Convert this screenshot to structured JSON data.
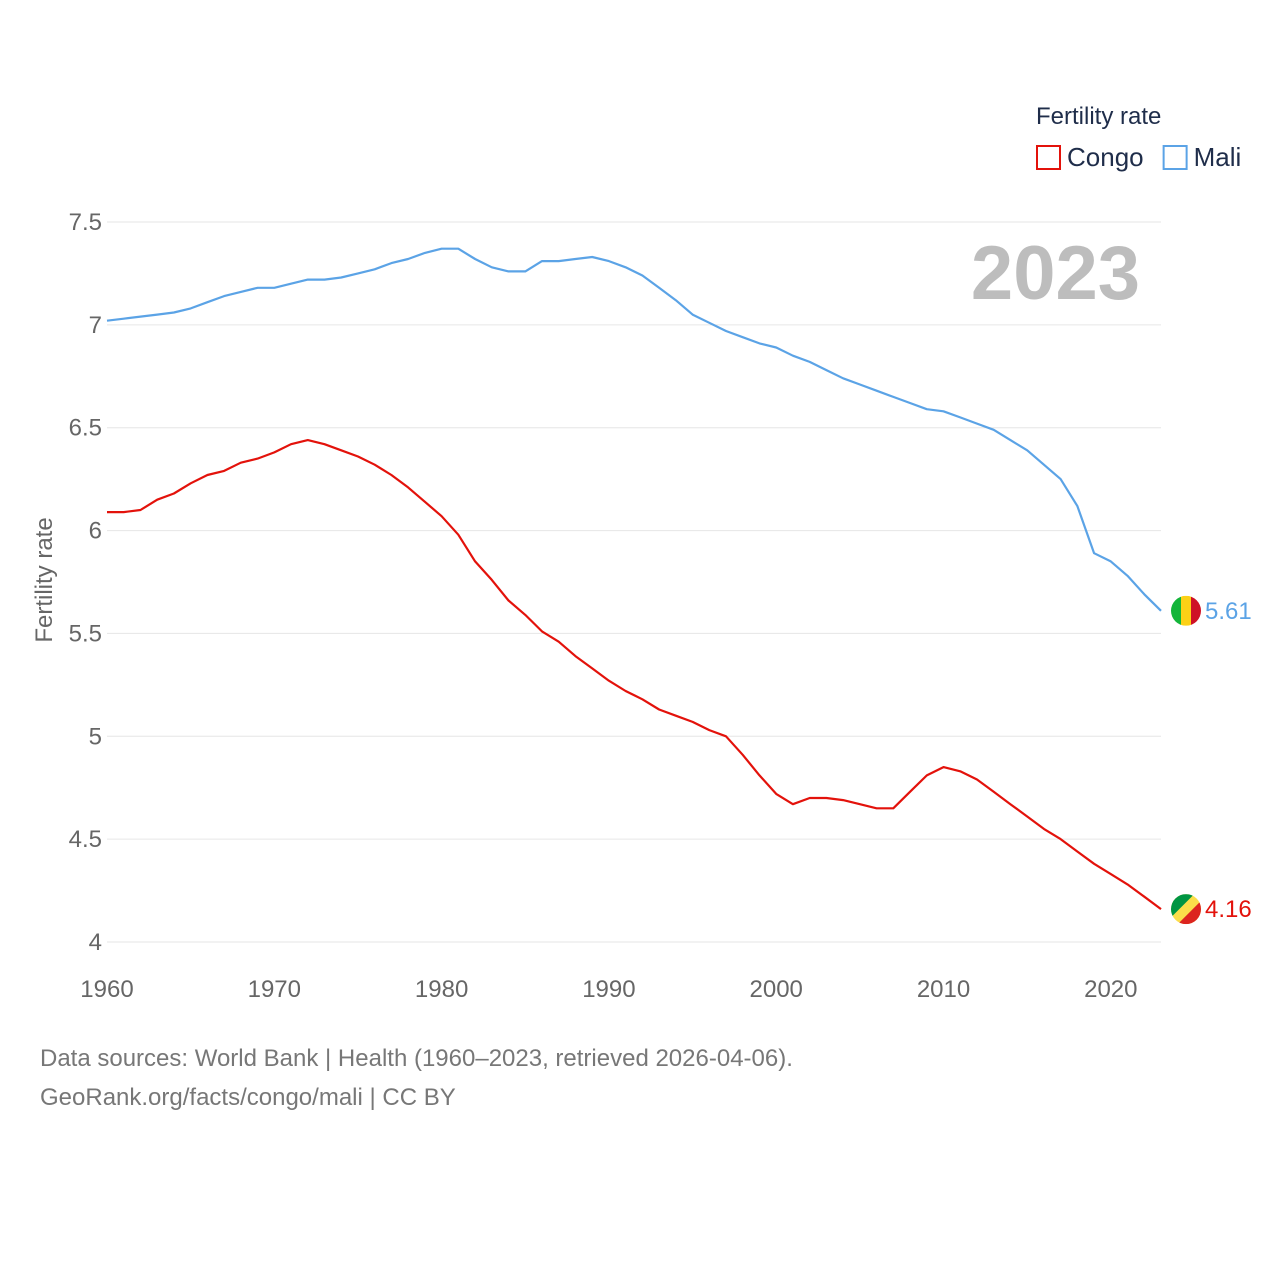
{
  "chart_data": {
    "type": "line",
    "ylabel": "Fertility rate",
    "xlabel": "",
    "ylim": [
      4,
      7.5
    ],
    "xlim": [
      1960,
      2023
    ],
    "y_ticks": [
      "4",
      "4.5",
      "5",
      "5.5",
      "6",
      "6.5",
      "7",
      "7.5"
    ],
    "x_ticks": [
      "1960",
      "1970",
      "1980",
      "1990",
      "2000",
      "2010",
      "2020"
    ],
    "legend": {
      "title": "Fertility rate",
      "position": "top-right"
    },
    "year_label": "2023",
    "grid": true,
    "x": [
      1960,
      1961,
      1962,
      1963,
      1964,
      1965,
      1966,
      1967,
      1968,
      1969,
      1970,
      1971,
      1972,
      1973,
      1974,
      1975,
      1976,
      1977,
      1978,
      1979,
      1980,
      1981,
      1982,
      1983,
      1984,
      1985,
      1986,
      1987,
      1988,
      1989,
      1990,
      1991,
      1992,
      1993,
      1994,
      1995,
      1996,
      1997,
      1998,
      1999,
      2000,
      2001,
      2002,
      2003,
      2004,
      2005,
      2006,
      2007,
      2008,
      2009,
      2010,
      2011,
      2012,
      2013,
      2014,
      2015,
      2016,
      2017,
      2018,
      2019,
      2020,
      2021,
      2022,
      2023
    ],
    "series": [
      {
        "name": "Congo",
        "color": "#e3120b",
        "end_label": "4.16",
        "flag": "congo",
        "values": [
          6.09,
          6.09,
          6.1,
          6.15,
          6.18,
          6.23,
          6.27,
          6.29,
          6.33,
          6.35,
          6.38,
          6.42,
          6.44,
          6.42,
          6.39,
          6.36,
          6.32,
          6.27,
          6.21,
          6.14,
          6.07,
          5.98,
          5.85,
          5.76,
          5.66,
          5.59,
          5.51,
          5.46,
          5.39,
          5.33,
          5.27,
          5.22,
          5.18,
          5.13,
          5.1,
          5.07,
          5.03,
          5.0,
          4.91,
          4.81,
          4.72,
          4.67,
          4.7,
          4.7,
          4.69,
          4.67,
          4.65,
          4.65,
          4.73,
          4.81,
          4.85,
          4.83,
          4.79,
          4.73,
          4.67,
          4.61,
          4.55,
          4.5,
          4.44,
          4.38,
          4.33,
          4.28,
          4.22,
          4.16
        ]
      },
      {
        "name": "Mali",
        "color": "#5ba3e6",
        "end_label": "5.61",
        "flag": "mali",
        "values": [
          7.02,
          7.03,
          7.04,
          7.05,
          7.06,
          7.08,
          7.11,
          7.14,
          7.16,
          7.18,
          7.18,
          7.2,
          7.22,
          7.22,
          7.23,
          7.25,
          7.27,
          7.3,
          7.32,
          7.35,
          7.37,
          7.37,
          7.32,
          7.28,
          7.26,
          7.26,
          7.31,
          7.31,
          7.32,
          7.33,
          7.31,
          7.28,
          7.24,
          7.18,
          7.12,
          7.05,
          7.01,
          6.97,
          6.94,
          6.91,
          6.89,
          6.85,
          6.82,
          6.78,
          6.74,
          6.71,
          6.68,
          6.65,
          6.62,
          6.59,
          6.58,
          6.55,
          6.52,
          6.49,
          6.44,
          6.39,
          6.32,
          6.25,
          6.12,
          5.89,
          5.85,
          5.78,
          5.69,
          5.61
        ]
      }
    ]
  },
  "footer": {
    "sources": "Data sources: World Bank | Health (1960–2023, retrieved 2026-04-06).",
    "credit": "GeoRank.org/facts/congo/mali | CC BY"
  }
}
